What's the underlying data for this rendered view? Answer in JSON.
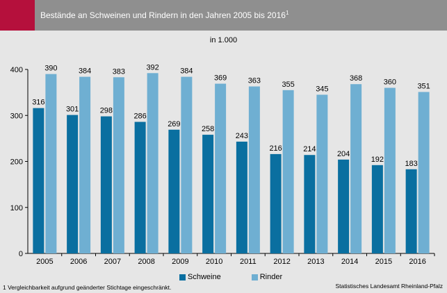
{
  "header": {
    "title": "Bestände an Schweinen und Rindern in den Jahren 2005 bis 2016",
    "title_sup": "1",
    "accent_color": "#b5103c",
    "band_color": "#8f8f8f"
  },
  "footnote": "1 Vergleichbarkeit aufgrund geänderter Stichtage eingeschränkt.",
  "source": "Statistisches Landesamt Rheinland-Pfalz",
  "chart_data": {
    "type": "bar",
    "title": "Bestände an Schweinen und Rindern in den Jahren 2005 bis 2016",
    "subtitle": "in 1.000",
    "categories": [
      "2005",
      "2006",
      "2007",
      "2008",
      "2009",
      "2010",
      "2011",
      "2012",
      "2013",
      "2014",
      "2015",
      "2016"
    ],
    "series": [
      {
        "name": "Schweine",
        "color": "#0a6fa0",
        "values": [
          316,
          301,
          298,
          286,
          269,
          258,
          243,
          216,
          214,
          204,
          192,
          183
        ]
      },
      {
        "name": "Rinder",
        "color": "#6fafd2",
        "values": [
          390,
          384,
          383,
          392,
          384,
          369,
          363,
          355,
          345,
          368,
          360,
          351
        ]
      }
    ],
    "ylim": [
      0,
      400
    ],
    "yticks": [
      0,
      100,
      200,
      300,
      400
    ],
    "grid": false,
    "legend_position": "bottom",
    "data_labels": true
  }
}
